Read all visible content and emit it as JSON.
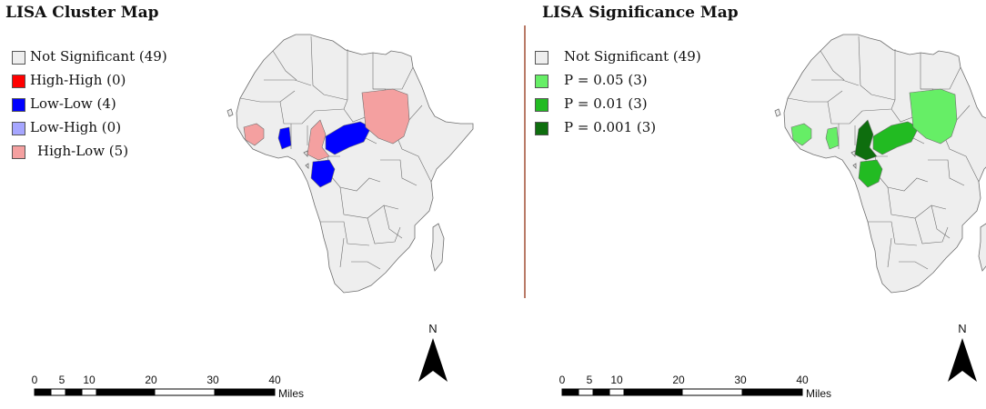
{
  "left_map": {
    "title": "LISA Cluster Map",
    "legend": [
      {
        "label": "Not Significant (49)",
        "color": "#eeeeee"
      },
      {
        "label": "High-High (0)",
        "color": "#ff0000"
      },
      {
        "label": "Low-Low (4)",
        "color": "#0000ff"
      },
      {
        "label": "Low-High (0)",
        "color": "#a6a6ff"
      },
      {
        "label": "High-Low (5)",
        "color": "#f4a0a0"
      }
    ],
    "highlight_colors": {
      "west": "#f4a0a0",
      "ivory": "#0000ff",
      "cameroon": "#f4a0a0",
      "central": "#0000ff",
      "gabon": "#0000ff",
      "sudan": "#f4a0a0"
    }
  },
  "right_map": {
    "title": "LISA Significance Map",
    "legend": [
      {
        "label": "Not Significant (49)",
        "color": "#eeeeee"
      },
      {
        "label": "P = 0.05 (3)",
        "color": "#66ee66"
      },
      {
        "label": "P = 0.01 (3)",
        "color": "#22bb22"
      },
      {
        "label": "P = 0.001 (3)",
        "color": "#0e6e0e"
      }
    ],
    "highlight_colors": {
      "west": "#66ee66",
      "ivory": "#66ee66",
      "cameroon": "#0e6e0e",
      "central": "#22bb22",
      "gabon": "#22bb22",
      "sudan": "#66ee66"
    }
  },
  "scale_bar": {
    "ticks": [
      "0",
      "5",
      "10",
      "20",
      "30",
      "40"
    ],
    "unit": "Miles"
  },
  "north_arrow": {
    "label": "N"
  },
  "colors": {
    "land": "#eeeeee",
    "border": "#6e6e6e",
    "divider": "#b97a67"
  }
}
